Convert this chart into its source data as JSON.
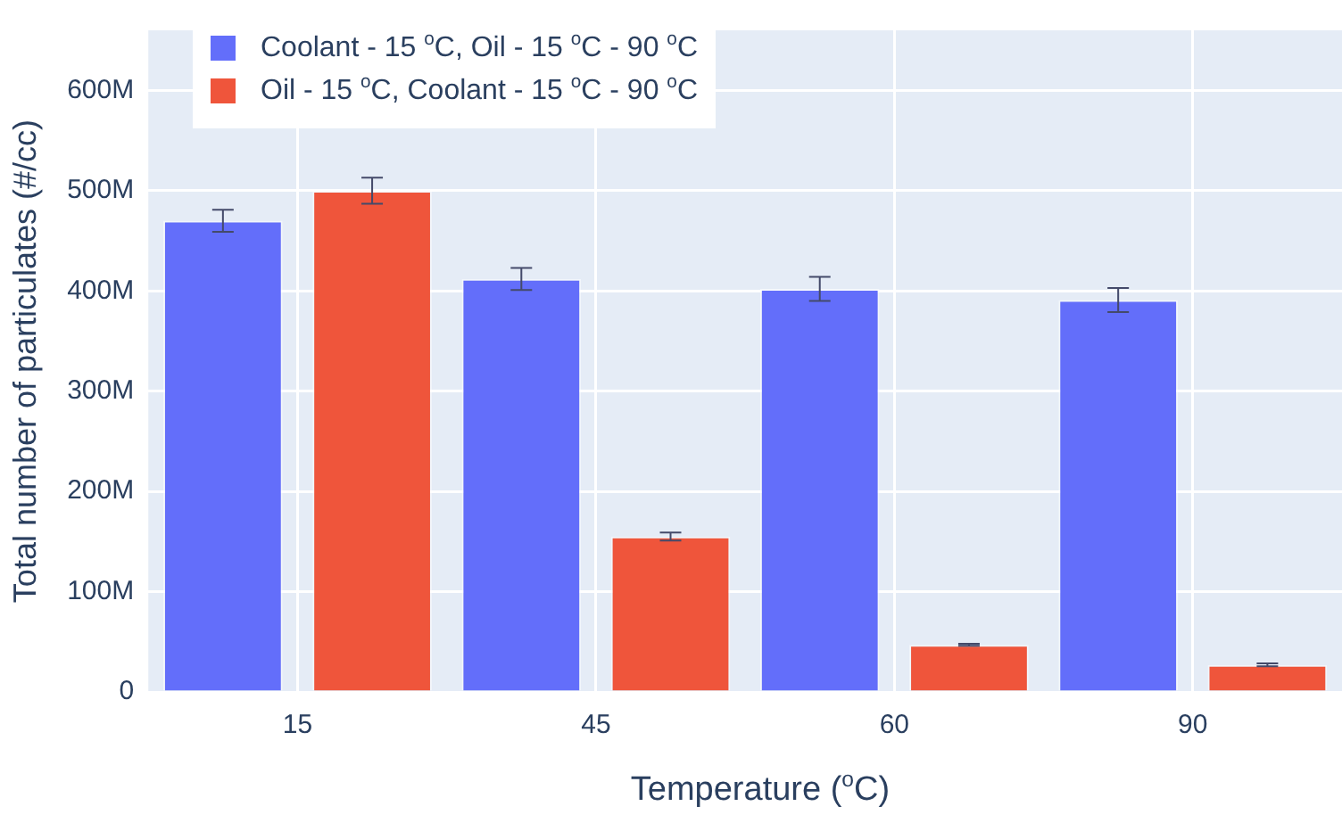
{
  "chart_data": {
    "type": "bar",
    "xlabel": "Temperature ($^{o}$C)",
    "ylabel": "Total number of particulates (#/cc)",
    "categories": [
      "15",
      "45",
      "60",
      "90"
    ],
    "series": [
      {
        "name": "Coolant - 15 $^{o}$C, Oil - 15 $^{o}$C - 90 $^{o}$C",
        "color": "#636efa",
        "values": [
          470000000,
          412000000,
          402000000,
          391000000
        ],
        "errors": [
          11000000,
          11000000,
          12000000,
          12000000
        ]
      },
      {
        "name": "Oil - 15 $^{o}$C, Coolant - 15 $^{o}$C - 90 $^{o}$C",
        "color": "#ef553b",
        "values": [
          500000000,
          155000000,
          47000000,
          27000000
        ],
        "errors": [
          13000000,
          4000000,
          1000000,
          1500000
        ]
      }
    ],
    "ylim": [
      0,
      660000000
    ],
    "yticks": [
      {
        "value": 0,
        "label": "0"
      },
      {
        "value": 100000000,
        "label": "100M"
      },
      {
        "value": 200000000,
        "label": "200M"
      },
      {
        "value": 300000000,
        "label": "300M"
      },
      {
        "value": 400000000,
        "label": "400M"
      },
      {
        "value": 500000000,
        "label": "500M"
      },
      {
        "value": 600000000,
        "label": "600M"
      }
    ],
    "grid": true,
    "legend": "top left"
  }
}
